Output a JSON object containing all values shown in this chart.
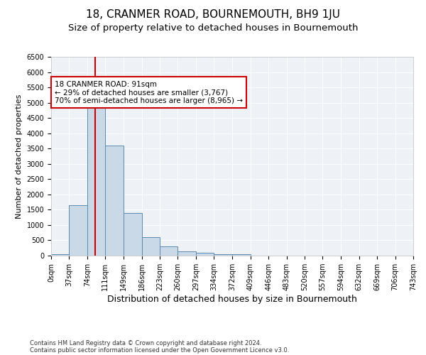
{
  "title": "18, CRANMER ROAD, BOURNEMOUTH, BH9 1JU",
  "subtitle": "Size of property relative to detached houses in Bournemouth",
  "xlabel": "Distribution of detached houses by size in Bournemouth",
  "ylabel": "Number of detached properties",
  "footer_line1": "Contains HM Land Registry data © Crown copyright and database right 2024.",
  "footer_line2": "Contains public sector information licensed under the Open Government Licence v3.0.",
  "bar_edges": [
    0,
    37,
    74,
    111,
    149,
    186,
    223,
    260,
    297,
    334,
    372,
    409,
    446,
    483,
    520,
    557,
    594,
    632,
    669,
    706,
    743
  ],
  "bar_heights": [
    50,
    1650,
    5100,
    3600,
    1400,
    600,
    300,
    150,
    100,
    50,
    50,
    0,
    0,
    0,
    0,
    0,
    0,
    0,
    0,
    0
  ],
  "bar_color": "#c9d9e8",
  "bar_edgecolor": "#5a8bb0",
  "property_size": 91,
  "property_line_color": "#cc0000",
  "annotation_text": "18 CRANMER ROAD: 91sqm\n← 29% of detached houses are smaller (3,767)\n70% of semi-detached houses are larger (8,965) →",
  "annotation_box_color": "#ffffff",
  "annotation_box_edgecolor": "#cc0000",
  "ylim": [
    0,
    6500
  ],
  "yticks": [
    0,
    500,
    1000,
    1500,
    2000,
    2500,
    3000,
    3500,
    4000,
    4500,
    5000,
    5500,
    6000,
    6500
  ],
  "background_color": "#eef2f7",
  "title_fontsize": 11,
  "subtitle_fontsize": 9.5,
  "tick_label_fontsize": 7,
  "ylabel_fontsize": 8,
  "xlabel_fontsize": 9
}
